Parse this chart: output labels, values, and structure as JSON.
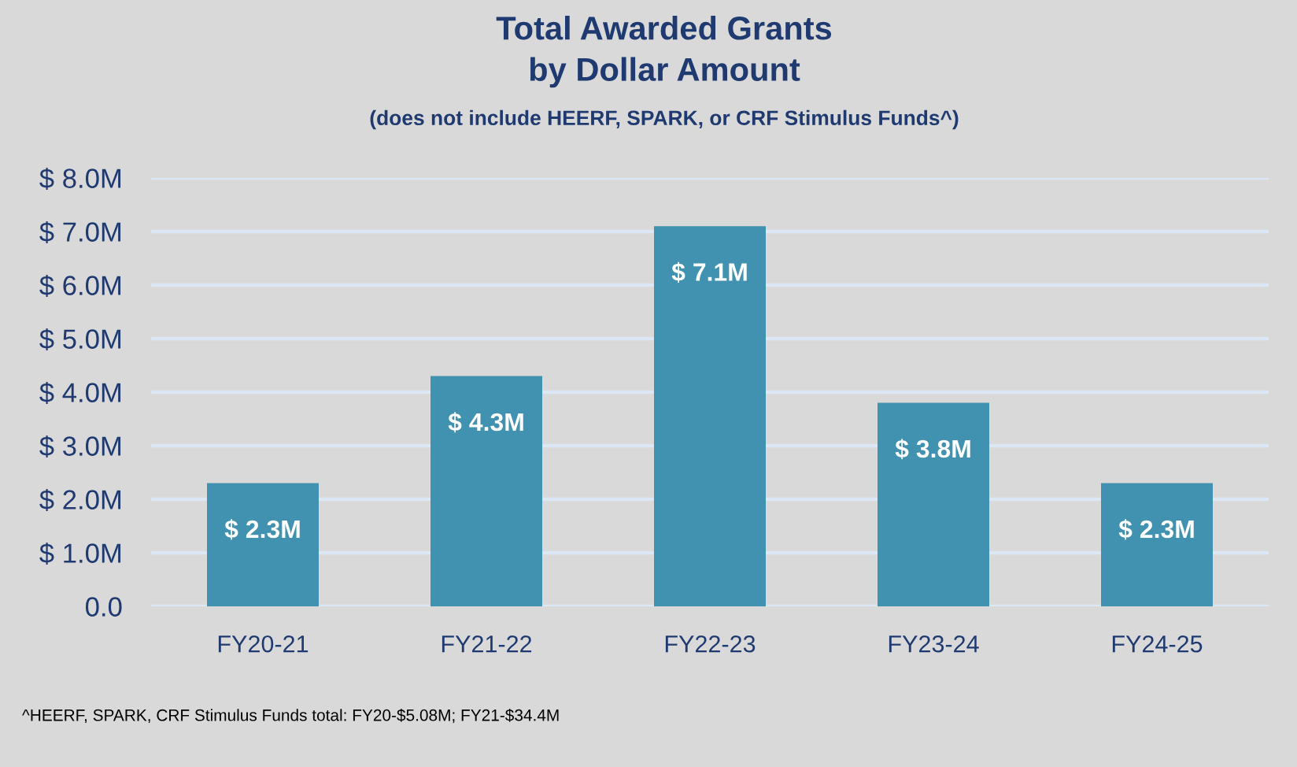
{
  "chart_data": {
    "type": "bar",
    "title": "Total Awarded Grants\nby Dollar Amount",
    "subtitle": "(does not include HEERF, SPARK, or CRF Stimulus Funds^)",
    "categories": [
      "FY20-21",
      "FY21-22",
      "FY22-23",
      "FY23-24",
      "FY24-25"
    ],
    "values": [
      2.3,
      4.3,
      7.1,
      3.8,
      2.3
    ],
    "color": "#4192b0",
    "value_labels": [
      "$ 2.3M",
      "$ 4.3M",
      "$ 7.1M",
      "$ 3.8M",
      "$ 2.3M"
    ],
    "ylim": [
      0,
      8
    ],
    "yticks": [
      {
        "value": 0,
        "label": "0.0"
      },
      {
        "value": 1,
        "label": "$ 1.0M"
      },
      {
        "value": 2,
        "label": "$ 2.0M"
      },
      {
        "value": 3,
        "label": "$ 3.0M"
      },
      {
        "value": 4,
        "label": "$ 4.0M"
      },
      {
        "value": 5,
        "label": "$ 5.0M"
      },
      {
        "value": 6,
        "label": "$ 6.0M"
      },
      {
        "value": 7,
        "label": "$ 7.0M"
      },
      {
        "value": 8,
        "label": "$ 8.0M"
      }
    ],
    "grid": "y",
    "annotations": [
      "^HEERF, SPARK, CRF Stimulus Funds total: FY20-$5.08M; FY21-$34.4M"
    ]
  }
}
